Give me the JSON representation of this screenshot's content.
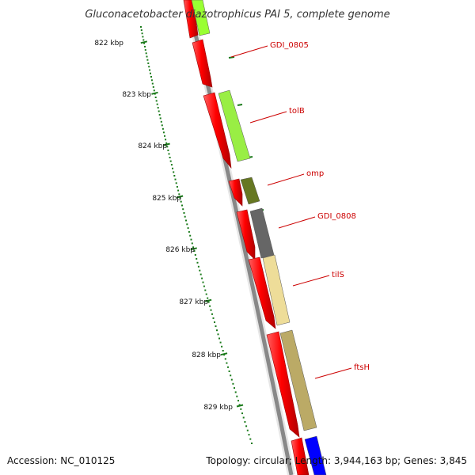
{
  "title": "Gluconacetobacter diazotrophicus PAI 5, complete genome",
  "accession": "Accession: NC_010125",
  "summary": "Topology: circular; Length: 3,944,163 bp; Genes: 3,845",
  "ruler": {
    "labels": [
      "822 kbp",
      "823 kbp",
      "824 kbp",
      "825 kbp",
      "826 kbp",
      "827 kbp",
      "828 kbp",
      "829 kbp"
    ],
    "color": "#1a7a1a"
  },
  "genes": [
    {
      "label": "GDI_0805",
      "color": "#99ff33"
    },
    {
      "label": "tolB",
      "color": "#99ee44"
    },
    {
      "label": "omp",
      "color": "#667722"
    },
    {
      "label": "GDI_0808",
      "color": "#666666"
    },
    {
      "label": "tilS",
      "color": "#eedd99"
    },
    {
      "label": "ftsH",
      "color": "#bbaa66"
    }
  ],
  "colors": {
    "cds": "#ff0000",
    "backbone": "#888888",
    "label": "#cc0000",
    "blue_feature": "#0000ff"
  }
}
